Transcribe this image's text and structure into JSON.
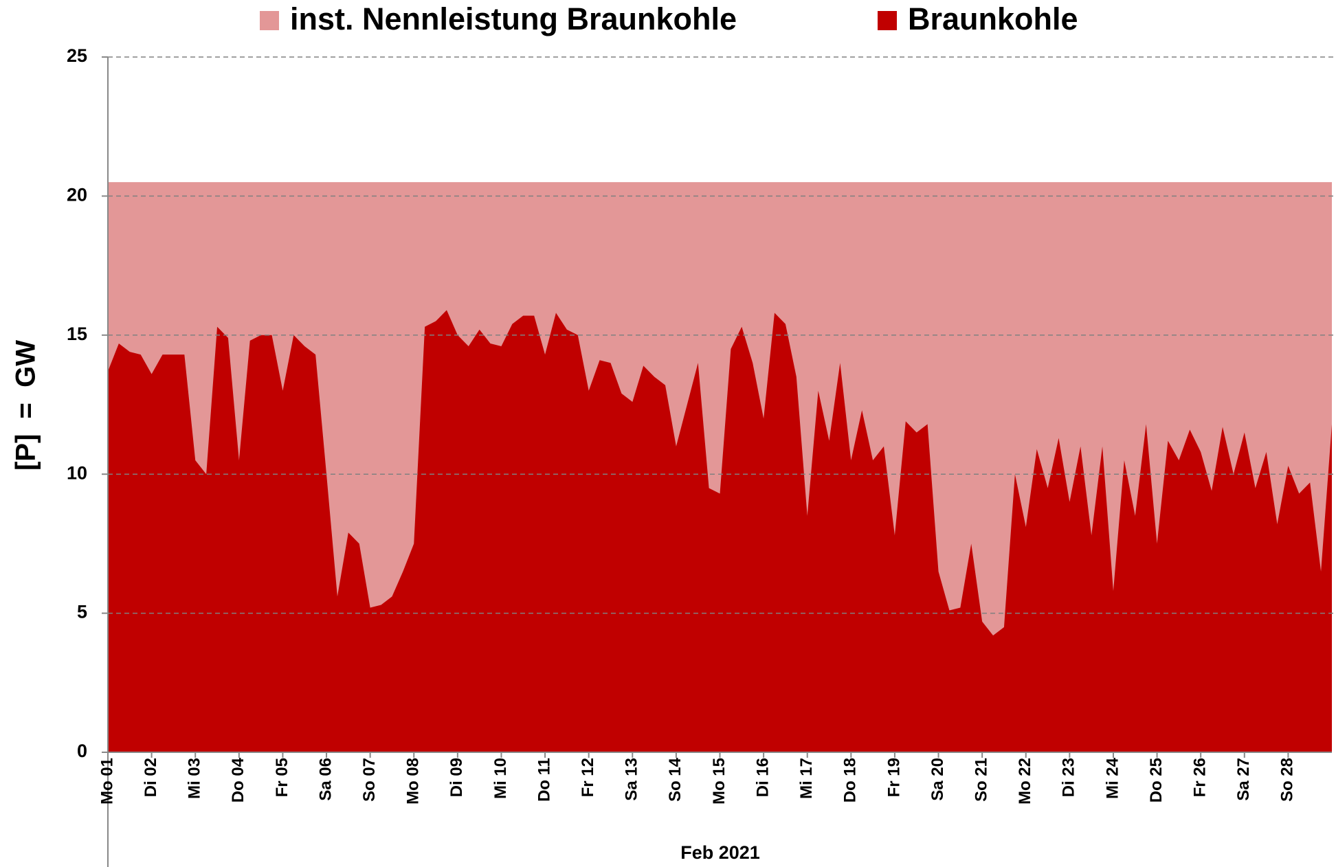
{
  "chart_data": {
    "type": "area",
    "legend_position": "top",
    "y_label": "[P]  =  GW",
    "x_label": "Feb 2021",
    "xlim": [
      1,
      29
    ],
    "xticks": [
      {
        "value": 1,
        "label": "Mo 01"
      },
      {
        "value": 2,
        "label": "Di 02"
      },
      {
        "value": 3,
        "label": "Mi 03"
      },
      {
        "value": 4,
        "label": "Do 04"
      },
      {
        "value": 5,
        "label": "Fr 05"
      },
      {
        "value": 6,
        "label": "Sa 06"
      },
      {
        "value": 7,
        "label": "So 07"
      },
      {
        "value": 8,
        "label": "Mo 08"
      },
      {
        "value": 9,
        "label": "Di 09"
      },
      {
        "value": 10,
        "label": "Mi 10"
      },
      {
        "value": 11,
        "label": "Do 11"
      },
      {
        "value": 12,
        "label": "Fr 12"
      },
      {
        "value": 13,
        "label": "Sa 13"
      },
      {
        "value": 14,
        "label": "So 14"
      },
      {
        "value": 15,
        "label": "Mo 15"
      },
      {
        "value": 16,
        "label": "Di 16"
      },
      {
        "value": 17,
        "label": "Mi 17"
      },
      {
        "value": 18,
        "label": "Do 18"
      },
      {
        "value": 19,
        "label": "Fr 19"
      },
      {
        "value": 20,
        "label": "Sa 20"
      },
      {
        "value": 21,
        "label": "So 21"
      },
      {
        "value": 22,
        "label": "Mo 22"
      },
      {
        "value": 23,
        "label": "Di 23"
      },
      {
        "value": 24,
        "label": "Mi 24"
      },
      {
        "value": 25,
        "label": "Do 25"
      },
      {
        "value": 26,
        "label": "Fr 26"
      },
      {
        "value": 27,
        "label": "Sa 27"
      },
      {
        "value": 28,
        "label": "So 28"
      }
    ],
    "ylim": [
      0,
      25
    ],
    "yticks": [
      0,
      5,
      10,
      15,
      20,
      25
    ],
    "grid": true,
    "series": [
      {
        "name": "inst. Nennleistung Braunkohle",
        "color": "#e39797",
        "x": [
          1,
          29
        ],
        "values": [
          20.5,
          20.5
        ]
      },
      {
        "name": "Braunkohle",
        "color": "#c00000",
        "x": [
          1,
          1.25,
          1.5,
          1.75,
          2,
          2.25,
          2.5,
          2.75,
          3,
          3.25,
          3.5,
          3.75,
          4,
          4.25,
          4.5,
          4.75,
          5,
          5.25,
          5.5,
          5.75,
          6,
          6.25,
          6.5,
          6.75,
          7,
          7.25,
          7.5,
          7.75,
          8,
          8.25,
          8.5,
          8.75,
          9,
          9.25,
          9.5,
          9.75,
          10,
          10.25,
          10.5,
          10.75,
          11,
          11.25,
          11.5,
          11.75,
          12,
          12.25,
          12.5,
          12.75,
          13,
          13.25,
          13.5,
          13.75,
          14,
          14.25,
          14.5,
          14.75,
          15,
          15.25,
          15.5,
          15.75,
          16,
          16.25,
          16.5,
          16.75,
          17,
          17.25,
          17.5,
          17.75,
          18,
          18.25,
          18.5,
          18.75,
          19,
          19.25,
          19.5,
          19.75,
          20,
          20.25,
          20.5,
          20.75,
          21,
          21.25,
          21.5,
          21.75,
          22,
          22.25,
          22.5,
          22.75,
          23,
          23.25,
          23.5,
          23.75,
          24,
          24.25,
          24.5,
          24.75,
          25,
          25.25,
          25.5,
          25.75,
          26,
          26.25,
          26.5,
          26.75,
          27,
          27.25,
          27.5,
          27.75,
          28,
          28.25,
          28.5,
          28.75,
          29
        ],
        "values": [
          13.7,
          14.7,
          14.4,
          14.3,
          13.6,
          14.3,
          14.3,
          14.3,
          10.5,
          10.0,
          15.3,
          14.9,
          10.5,
          14.8,
          15.0,
          15.0,
          13.0,
          15.0,
          14.6,
          14.3,
          10.0,
          5.6,
          7.9,
          7.5,
          5.2,
          5.3,
          5.6,
          6.5,
          7.5,
          15.3,
          15.5,
          15.9,
          15.0,
          14.6,
          15.2,
          14.7,
          14.6,
          15.4,
          15.7,
          15.7,
          14.3,
          15.8,
          15.2,
          15.0,
          13.0,
          14.1,
          14.0,
          12.9,
          12.6,
          13.9,
          13.5,
          13.2,
          11.0,
          12.5,
          14.0,
          9.5,
          9.3,
          14.5,
          15.3,
          14.0,
          12.0,
          15.8,
          15.4,
          13.5,
          8.5,
          13.0,
          11.2,
          14.0,
          10.5,
          12.3,
          10.5,
          11.0,
          7.8,
          11.9,
          11.5,
          11.8,
          6.5,
          5.1,
          5.2,
          7.5,
          4.7,
          4.2,
          4.5,
          10.0,
          8.1,
          10.9,
          9.5,
          11.3,
          9.0,
          11.0,
          7.8,
          11.0,
          5.8,
          10.5,
          8.5,
          11.8,
          7.5,
          11.2,
          10.5,
          11.6,
          10.8,
          9.4,
          11.7,
          10.0,
          11.5,
          9.5,
          10.8,
          8.2,
          10.3,
          9.3,
          9.7,
          6.5,
          11.8
        ]
      }
    ]
  }
}
